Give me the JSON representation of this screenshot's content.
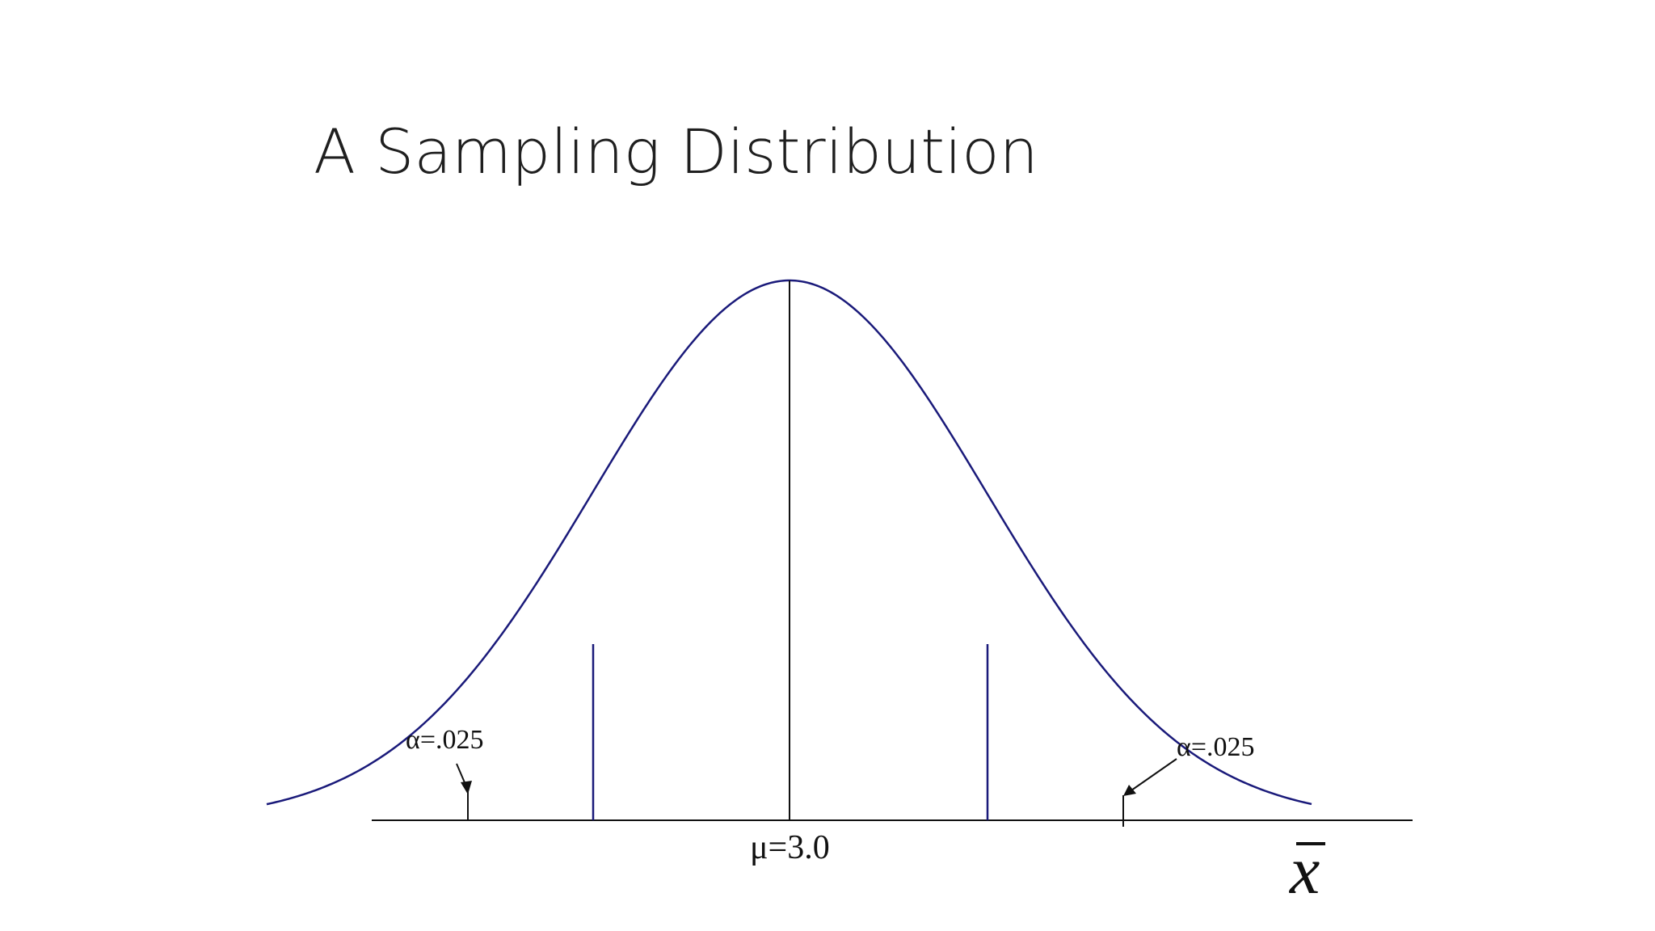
{
  "slide": {
    "title": "A Sampling Distribution"
  },
  "diagram": {
    "mean_label": "μ=3.0",
    "left_tail_label": "α=.025",
    "right_tail_label": "α=.025",
    "axis_symbol": "x̄",
    "curve_color": "#1a1a7a",
    "line_color": "#111111"
  }
}
